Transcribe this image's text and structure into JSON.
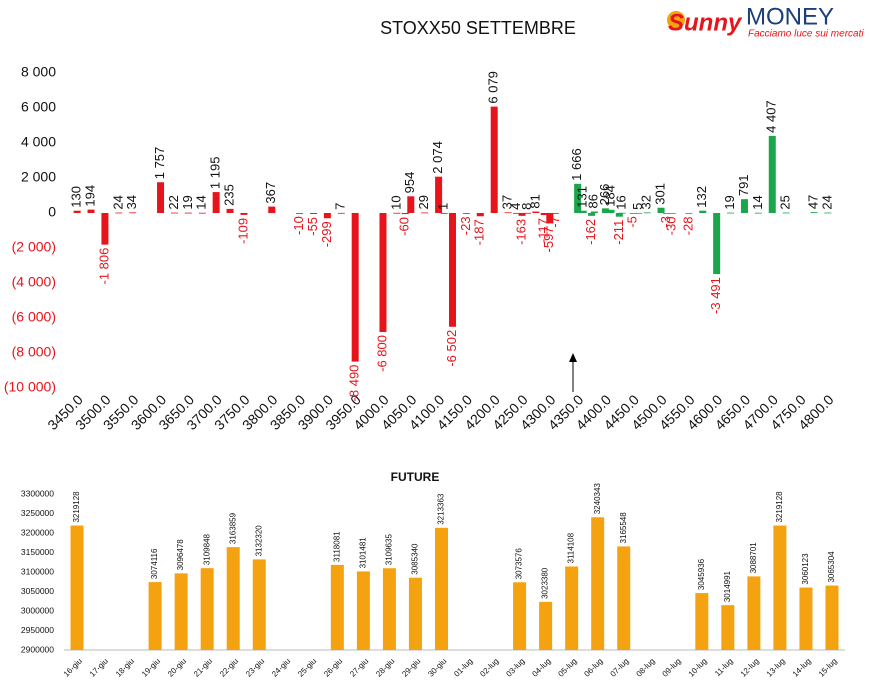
{
  "logo": {
    "brand": "Sunny",
    "name": "MONEY",
    "tagline": "Facciamo luce sui mercati"
  },
  "chart_data": [
    {
      "type": "bar",
      "title": "STOXX50 SETTEMBRE",
      "x": [
        3450,
        3475,
        3500,
        3525,
        3550,
        3600,
        3625,
        3650,
        3675,
        3700,
        3725,
        3750,
        3800,
        3850,
        3875,
        3900,
        3925,
        3950,
        4000,
        4025,
        4040,
        4050,
        4075,
        4100,
        4110,
        4125,
        4150,
        4175,
        4200,
        4225,
        4240,
        4250,
        4260,
        4275,
        4290,
        4300,
        4310,
        4350,
        4360,
        4375,
        4380,
        4400,
        4410,
        4425,
        4430,
        4450,
        4460,
        4475,
        4500,
        4510,
        4520,
        4550,
        4575,
        4600,
        4625,
        4650,
        4675,
        4700,
        4725,
        4775,
        4800
      ],
      "values": [
        130,
        194,
        -1806,
        24,
        34,
        1757,
        22,
        19,
        14,
        1195,
        235,
        -109,
        367,
        -10,
        -55,
        -299,
        7,
        -8490,
        -6800,
        10,
        -60,
        954,
        29,
        2074,
        1,
        -6502,
        -23,
        -187,
        6079,
        37,
        4,
        -163,
        8,
        81,
        -117,
        -597,
        -7,
        1666,
        131,
        -162,
        86,
        266,
        184,
        -211,
        16,
        -5,
        5,
        32,
        301,
        -3,
        -30,
        -28,
        132,
        -3491,
        19,
        791,
        14,
        4407,
        25,
        47,
        24
      ],
      "value_labels": [
        "130",
        "194",
        "-1 806",
        "24",
        "34",
        "1 757",
        "22",
        "19",
        "14",
        "1 195",
        "235",
        "-109",
        "367",
        "-10",
        "-55",
        "-299",
        "7",
        "-8 490",
        "-6 800",
        "10",
        "-60",
        "954",
        "29",
        "2 074",
        "1",
        "-6 502",
        "-23",
        "-187",
        "6 079",
        "37",
        "4",
        "-163",
        "8",
        "81",
        "-117",
        "-597",
        "-7",
        "1 666",
        "131",
        "-162",
        "86",
        "266",
        "184",
        "-211",
        "16",
        "-5",
        "5",
        "32",
        "301",
        "-3",
        "-30",
        "-28",
        "132",
        "-3 491",
        "19",
        "791",
        "14",
        "4 407",
        "25",
        "47",
        "24"
      ],
      "colors": [
        "#e8141b",
        "#e8141b",
        "#e8141b",
        "#e8141b",
        "#e8141b",
        "#e8141b",
        "#e8141b",
        "#e8141b",
        "#e8141b",
        "#e8141b",
        "#e8141b",
        "#e8141b",
        "#e8141b",
        "#e8141b",
        "#e8141b",
        "#e8141b",
        "#e8141b",
        "#e8141b",
        "#e8141b",
        "#e8141b",
        "#e8141b",
        "#e8141b",
        "#e8141b",
        "#e8141b",
        "#e8141b",
        "#e8141b",
        "#e8141b",
        "#e8141b",
        "#e8141b",
        "#e8141b",
        "#e8141b",
        "#e8141b",
        "#e8141b",
        "#e8141b",
        "#e8141b",
        "#e8141b",
        "#e8141b",
        "#1aa64a",
        "#1aa64a",
        "#1aa64a",
        "#1aa64a",
        "#1aa64a",
        "#1aa64a",
        "#1aa64a",
        "#1aa64a",
        "#1aa64a",
        "#1aa64a",
        "#1aa64a",
        "#1aa64a",
        "#1aa64a",
        "#1aa64a",
        "#1aa64a",
        "#1aa64a",
        "#1aa64a",
        "#1aa64a",
        "#1aa64a",
        "#1aa64a",
        "#1aa64a",
        "#1aa64a",
        "#1aa64a",
        "#1aa64a"
      ],
      "negative_label_color": "#e8141b",
      "xlim": [
        3430,
        4820
      ],
      "xticks": [
        {
          "value": 3450,
          "label": "3450.0"
        },
        {
          "value": 3500,
          "label": "3500.0"
        },
        {
          "value": 3550,
          "label": "3550.0"
        },
        {
          "value": 3600,
          "label": "3600.0"
        },
        {
          "value": 3650,
          "label": "3650.0"
        },
        {
          "value": 3700,
          "label": "3700.0"
        },
        {
          "value": 3750,
          "label": "3750.0"
        },
        {
          "value": 3800,
          "label": "3800.0"
        },
        {
          "value": 3850,
          "label": "3850.0"
        },
        {
          "value": 3900,
          "label": "3900.0"
        },
        {
          "value": 3950,
          "label": "3950.0"
        },
        {
          "value": 4000,
          "label": "4000.0"
        },
        {
          "value": 4050,
          "label": "4050.0"
        },
        {
          "value": 4100,
          "label": "4100.0"
        },
        {
          "value": 4150,
          "label": "4150.0"
        },
        {
          "value": 4200,
          "label": "4200.0"
        },
        {
          "value": 4250,
          "label": "4250.0"
        },
        {
          "value": 4300,
          "label": "4300.0"
        },
        {
          "value": 4350,
          "label": "4350.0"
        },
        {
          "value": 4400,
          "label": "4400.0"
        },
        {
          "value": 4450,
          "label": "4450.0"
        },
        {
          "value": 4500,
          "label": "4500.0"
        },
        {
          "value": 4550,
          "label": "4550.0"
        },
        {
          "value": 4600,
          "label": "4600.0"
        },
        {
          "value": 4650,
          "label": "4650.0"
        },
        {
          "value": 4700,
          "label": "4700.0"
        },
        {
          "value": 4750,
          "label": "4750.0"
        },
        {
          "value": 4800,
          "label": "4800.0"
        }
      ],
      "ylim": [
        -10000,
        8000
      ],
      "yticks": [
        {
          "value": 8000,
          "label": "8 000"
        },
        {
          "value": 6000,
          "label": "6 000"
        },
        {
          "value": 4000,
          "label": "4 000"
        },
        {
          "value": 2000,
          "label": "2 000"
        },
        0,
        {
          "value": -2000,
          "label": "(2 000)"
        },
        {
          "value": -4000,
          "label": "(4 000)"
        },
        {
          "value": -6000,
          "label": "(6 000)"
        },
        {
          "value": -8000,
          "label": "(8 000)"
        },
        {
          "value": -10000,
          "label": "(10 000)"
        }
      ]
    },
    {
      "type": "bar",
      "title": "FUTURE",
      "color": "#f4a20f",
      "categories": [
        "16-giu",
        "17-giu",
        "18-giu",
        "19-giu",
        "20-giu",
        "21-giu",
        "22-giu",
        "23-giu",
        "24-giu",
        "25-giu",
        "26-giu",
        "27-giu",
        "28-giu",
        "29-giu",
        "30-giu",
        "01-lug",
        "02-lug",
        "03-lug",
        "04-lug",
        "05-lug",
        "06-lug",
        "07-lug",
        "08-lug",
        "09-lug",
        "10-lug",
        "11-lug",
        "12-lug",
        "13-lug",
        "14-lug",
        "15-lug"
      ],
      "values": [
        3219128,
        null,
        null,
        3074116,
        3096478,
        3109848,
        3163859,
        3132320,
        null,
        null,
        3118081,
        3101481,
        3109635,
        3085340,
        3213363,
        null,
        null,
        3073576,
        3023380,
        3114108,
        3240343,
        3165548,
        null,
        null,
        3045936,
        3014991,
        3088701,
        3219128,
        3060123,
        3065304
      ],
      "ylim": [
        2900000,
        3300000
      ],
      "yticks": [
        3300000,
        3250000,
        3200000,
        3150000,
        3100000,
        3050000,
        3000000,
        2950000,
        2900000
      ]
    }
  ]
}
